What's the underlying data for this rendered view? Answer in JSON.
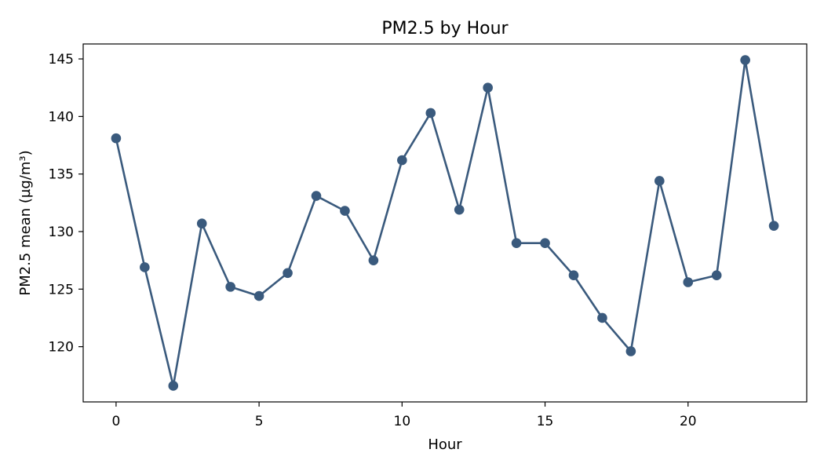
{
  "chart_data": {
    "type": "line",
    "title": "PM2.5 by Hour",
    "xlabel": "Hour",
    "ylabel": "PM2.5 mean (µg/m³)",
    "x": [
      0,
      1,
      2,
      3,
      4,
      5,
      6,
      7,
      8,
      9,
      10,
      11,
      12,
      13,
      14,
      15,
      16,
      17,
      18,
      19,
      20,
      21,
      22,
      23
    ],
    "series": [
      {
        "values": [
          138.1,
          126.9,
          116.6,
          130.7,
          125.2,
          124.4,
          126.4,
          133.1,
          131.8,
          127.5,
          136.2,
          140.3,
          131.9,
          142.5,
          129.0,
          129.0,
          126.2,
          122.5,
          119.6,
          134.4,
          125.6,
          126.2,
          144.9,
          130.5
        ]
      }
    ],
    "xlim": [
      -1.15,
      24.15
    ],
    "ylim": [
      115.2,
      146.3
    ],
    "xticks": [
      0,
      5,
      10,
      15,
      20
    ],
    "yticks": [
      120,
      125,
      130,
      135,
      140,
      145
    ],
    "color": "#3a5a7d",
    "grid": false,
    "markers": true
  }
}
